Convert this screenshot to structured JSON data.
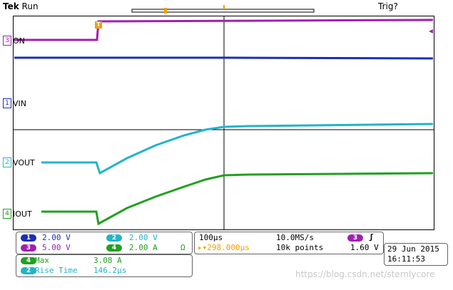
{
  "header": {
    "brand": "Tek",
    "status": "Run",
    "trigger_status": "Trig?"
  },
  "colors": {
    "ch1": "#1c2fb5",
    "ch2": "#22b4c8",
    "ch3": "#a020b0",
    "ch4": "#22a020",
    "trigger": "#f0a000",
    "grid": "#000000"
  },
  "channels": {
    "ch3_label": "ON",
    "ch1_label": "VIN",
    "ch2_label": "VOUT",
    "ch4_label": "IOUT",
    "ch3_num": "3",
    "ch1_num": "1",
    "ch2_num": "2",
    "ch4_num": "4"
  },
  "markers": {
    "trigger_marker": "T"
  },
  "scale_panel": {
    "ch1_num": "1",
    "ch1_scale": "2.00 V",
    "ch2_num": "2",
    "ch2_scale": "2.00 V",
    "ch3_num": "3",
    "ch3_scale": "5.00 V",
    "ch4_num": "4",
    "ch4_scale": "2.00 A",
    "ch4_coupling": "Ω"
  },
  "timebase": {
    "time_div": "100µs",
    "sample_rate": "10.0MS/s",
    "trigger_offset": "▸▾298.000µs",
    "record_length": "10k points",
    "trigger_source_num": "3",
    "trigger_slope": "ʃ",
    "trigger_level": "1.60 V"
  },
  "datetime": {
    "date": "29 Jun 2015",
    "time": "16:11:53"
  },
  "measurements": [
    {
      "ch": "4",
      "label": "Max",
      "value": "3.08 A"
    },
    {
      "ch": "2",
      "label": "Rise Time",
      "value": "146.2µs"
    }
  ],
  "watermark": "https://blog.csdn.net/sternlycore"
}
